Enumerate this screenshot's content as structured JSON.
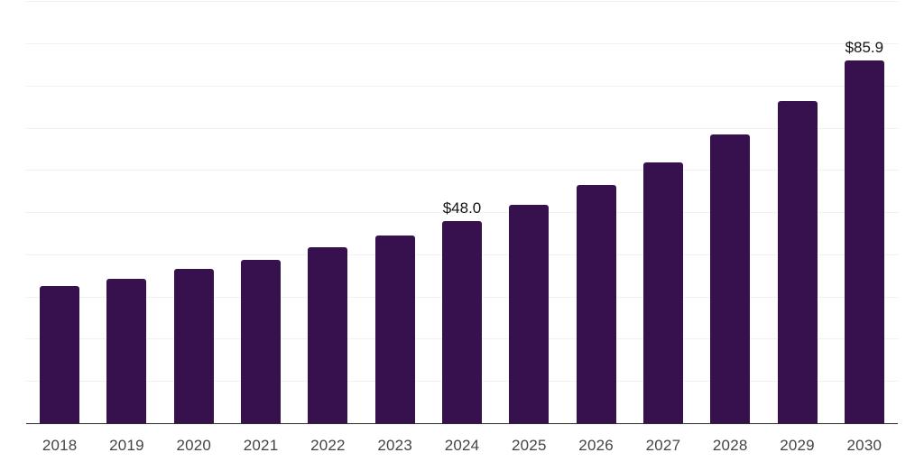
{
  "chart_data": {
    "type": "bar",
    "title": "",
    "xlabel": "",
    "ylabel": "",
    "categories": [
      "2018",
      "2019",
      "2020",
      "2021",
      "2022",
      "2023",
      "2024",
      "2025",
      "2026",
      "2027",
      "2028",
      "2029",
      "2030"
    ],
    "values": [
      32.5,
      34.3,
      36.5,
      38.8,
      41.7,
      44.5,
      48.0,
      51.8,
      56.5,
      61.7,
      68.4,
      76.4,
      85.9
    ],
    "annotations": [
      {
        "category": "2024",
        "label": "$48.0"
      },
      {
        "category": "2030",
        "label": "$85.9"
      }
    ],
    "ylim": [
      0,
      100
    ],
    "grid_step": 10,
    "grid": "horizontal",
    "legend": "none",
    "colors": {
      "bar": "#36114E",
      "gridline": "#F1F1F1",
      "axis_line": "#2B2B2B",
      "tick_label": "#444444",
      "value_label": "#141414",
      "background": "#FFFFFF"
    }
  }
}
